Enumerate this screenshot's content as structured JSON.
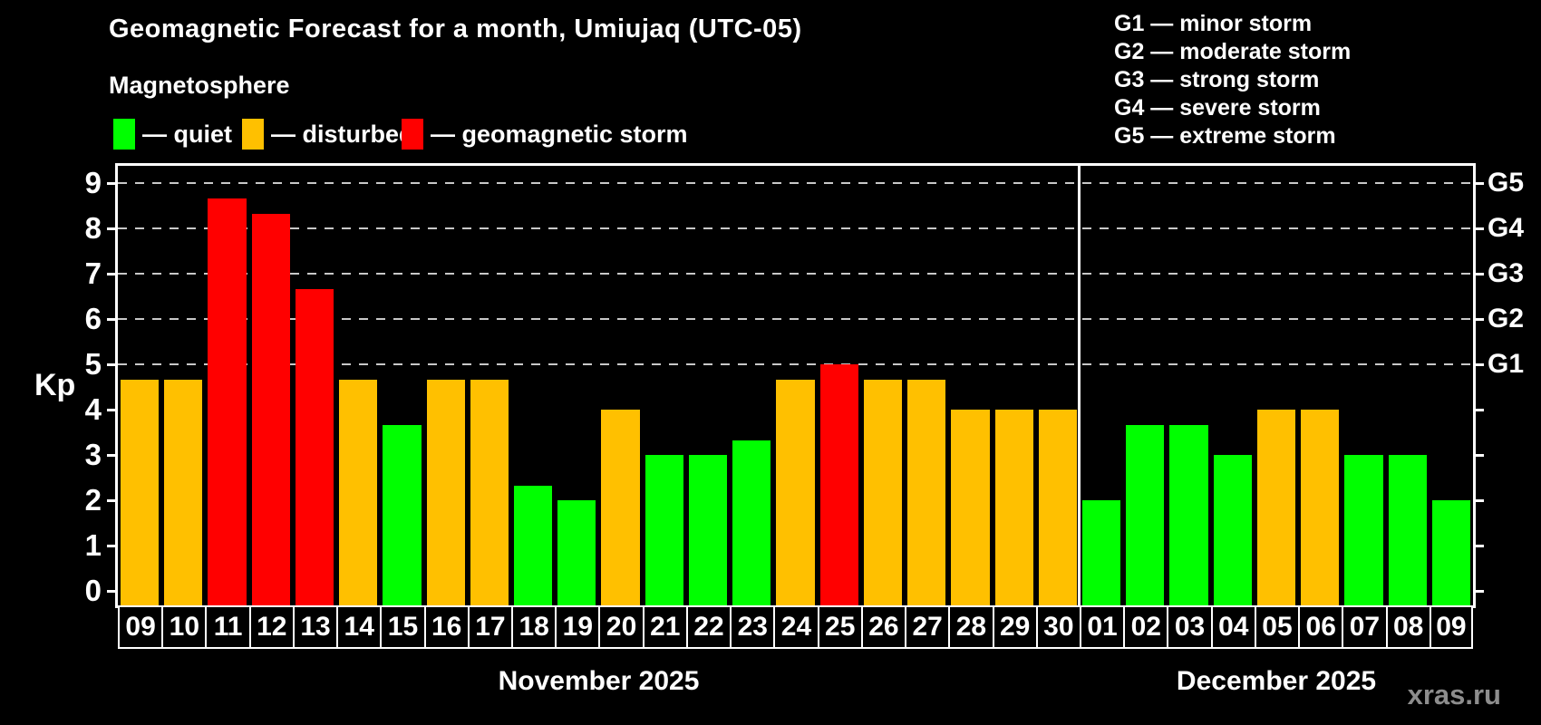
{
  "header": {
    "title": "Geomagnetic Forecast for a month, Umiujaq (UTC-05)",
    "subtitle": "Magnetosphere"
  },
  "legend": {
    "items": [
      {
        "key": "quiet",
        "label": "— quiet",
        "color": "#00ff00"
      },
      {
        "key": "disturbed",
        "label": "— disturbed",
        "color": "#ffc000"
      },
      {
        "key": "storm",
        "label": "— geomagnetic storm",
        "color": "#ff0000"
      }
    ]
  },
  "g_scale_legend": {
    "items": [
      "G1 — minor storm",
      "G2 — moderate storm",
      "G3 — strong storm",
      "G4 — severe storm",
      "G5 — extreme storm"
    ]
  },
  "watermark": "xras.ru",
  "chart_data": {
    "type": "bar",
    "ylabel": "Kp",
    "ylim": [
      0,
      9
    ],
    "yticks": [
      0,
      1,
      2,
      3,
      4,
      5,
      6,
      7,
      8,
      9
    ],
    "gridlines_at": [
      5,
      6,
      7,
      8,
      9
    ],
    "grid_style": "dashed horizontal lines at G-storm levels only",
    "legend_position": "top",
    "right_axis_labels": [
      {
        "kp": 5,
        "label": "G1"
      },
      {
        "kp": 6,
        "label": "G2"
      },
      {
        "kp": 7,
        "label": "G3"
      },
      {
        "kp": 8,
        "label": "G4"
      },
      {
        "kp": 9,
        "label": "G5"
      }
    ],
    "status_colors": {
      "quiet": "#00ff00",
      "disturbed": "#ffc000",
      "storm": "#ff0000"
    },
    "months": [
      {
        "label": "November 2025",
        "days": [
          {
            "day": "09",
            "kp": 4.67,
            "status": "disturbed"
          },
          {
            "day": "10",
            "kp": 4.67,
            "status": "disturbed"
          },
          {
            "day": "11",
            "kp": 8.67,
            "status": "storm"
          },
          {
            "day": "12",
            "kp": 8.33,
            "status": "storm"
          },
          {
            "day": "13",
            "kp": 6.67,
            "status": "storm"
          },
          {
            "day": "14",
            "kp": 4.67,
            "status": "disturbed"
          },
          {
            "day": "15",
            "kp": 3.67,
            "status": "quiet"
          },
          {
            "day": "16",
            "kp": 4.67,
            "status": "disturbed"
          },
          {
            "day": "17",
            "kp": 4.67,
            "status": "disturbed"
          },
          {
            "day": "18",
            "kp": 2.33,
            "status": "quiet"
          },
          {
            "day": "19",
            "kp": 2.0,
            "status": "quiet"
          },
          {
            "day": "20",
            "kp": 4.0,
            "status": "disturbed"
          },
          {
            "day": "21",
            "kp": 3.0,
            "status": "quiet"
          },
          {
            "day": "22",
            "kp": 3.0,
            "status": "quiet"
          },
          {
            "day": "23",
            "kp": 3.33,
            "status": "quiet"
          },
          {
            "day": "24",
            "kp": 4.67,
            "status": "disturbed"
          },
          {
            "day": "25",
            "kp": 5.0,
            "status": "storm"
          },
          {
            "day": "26",
            "kp": 4.67,
            "status": "disturbed"
          },
          {
            "day": "27",
            "kp": 4.67,
            "status": "disturbed"
          },
          {
            "day": "28",
            "kp": 4.0,
            "status": "disturbed"
          },
          {
            "day": "29",
            "kp": 4.0,
            "status": "disturbed"
          },
          {
            "day": "30",
            "kp": 4.0,
            "status": "disturbed"
          }
        ]
      },
      {
        "label": "December 2025",
        "days": [
          {
            "day": "01",
            "kp": 2.0,
            "status": "quiet"
          },
          {
            "day": "02",
            "kp": 3.67,
            "status": "quiet"
          },
          {
            "day": "03",
            "kp": 3.67,
            "status": "quiet"
          },
          {
            "day": "04",
            "kp": 3.0,
            "status": "quiet"
          },
          {
            "day": "05",
            "kp": 4.0,
            "status": "disturbed"
          },
          {
            "day": "06",
            "kp": 4.0,
            "status": "disturbed"
          },
          {
            "day": "07",
            "kp": 3.0,
            "status": "quiet"
          },
          {
            "day": "08",
            "kp": 3.0,
            "status": "quiet"
          },
          {
            "day": "09",
            "kp": 2.0,
            "status": "quiet"
          }
        ]
      }
    ]
  }
}
